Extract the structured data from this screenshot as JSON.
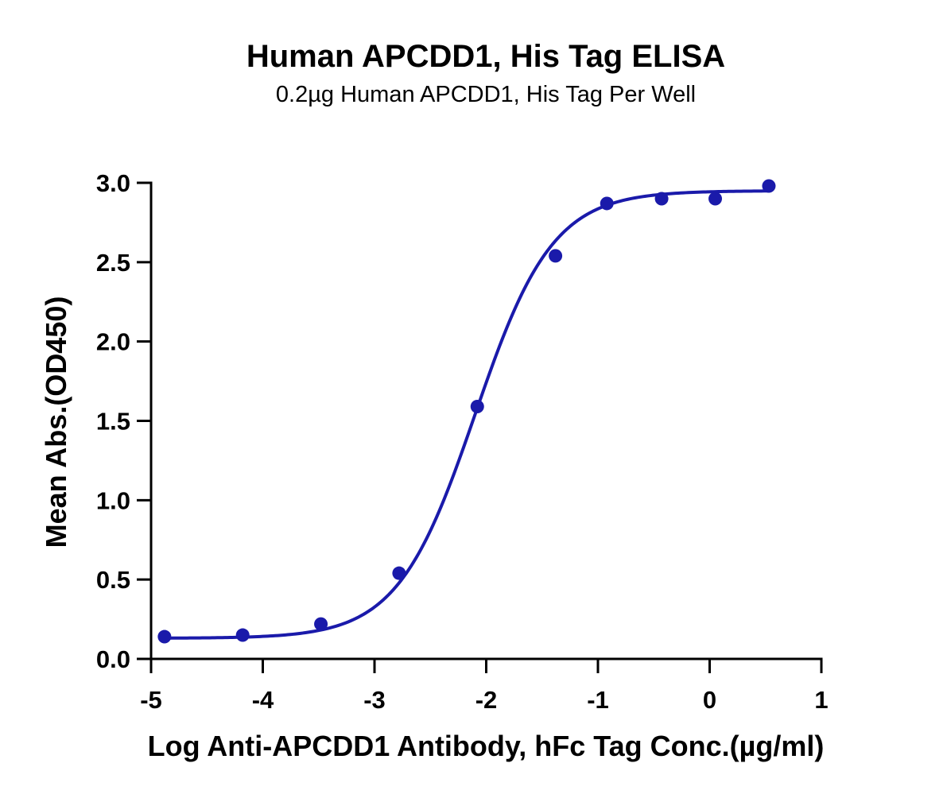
{
  "chart_data": {
    "type": "scatter",
    "title": "Human APCDD1, His Tag ELISA",
    "subtitle": "0.2µg Human APCDD1, His Tag Per Well",
    "xlabel": "Log Anti-APCDD1 Antibody, hFc Tag Conc.(µg/ml)",
    "ylabel": "Mean Abs.(OD450)",
    "xlim": [
      -5,
      1
    ],
    "ylim": [
      0,
      3.0
    ],
    "xticks": [
      -5,
      -4,
      -3,
      -2,
      -1,
      0,
      1
    ],
    "xtick_labels": [
      "-5",
      "-4",
      "-3",
      "-2",
      "-1",
      "0",
      "1"
    ],
    "yticks": [
      0,
      0.5,
      1.0,
      1.5,
      2.0,
      2.5,
      3.0
    ],
    "ytick_labels": [
      "0.0",
      "0.5",
      "1.0",
      "1.5",
      "2.0",
      "2.5",
      "3.0"
    ],
    "grid": false,
    "color": "#1a1aaa",
    "series": [
      {
        "x": [
          -4.88,
          -4.18,
          -3.48,
          -2.78,
          -2.08,
          -1.38,
          -0.92,
          -0.43,
          0.05,
          0.53
        ],
        "y": [
          0.14,
          0.15,
          0.22,
          0.54,
          1.59,
          2.54,
          2.87,
          2.9,
          2.9,
          2.98
        ],
        "fit": "4PL sigmoidal curve",
        "fit_params": {
          "bottom": 0.13,
          "top": 2.95,
          "logEC50": -2.1,
          "hill": 1.25
        }
      }
    ]
  }
}
